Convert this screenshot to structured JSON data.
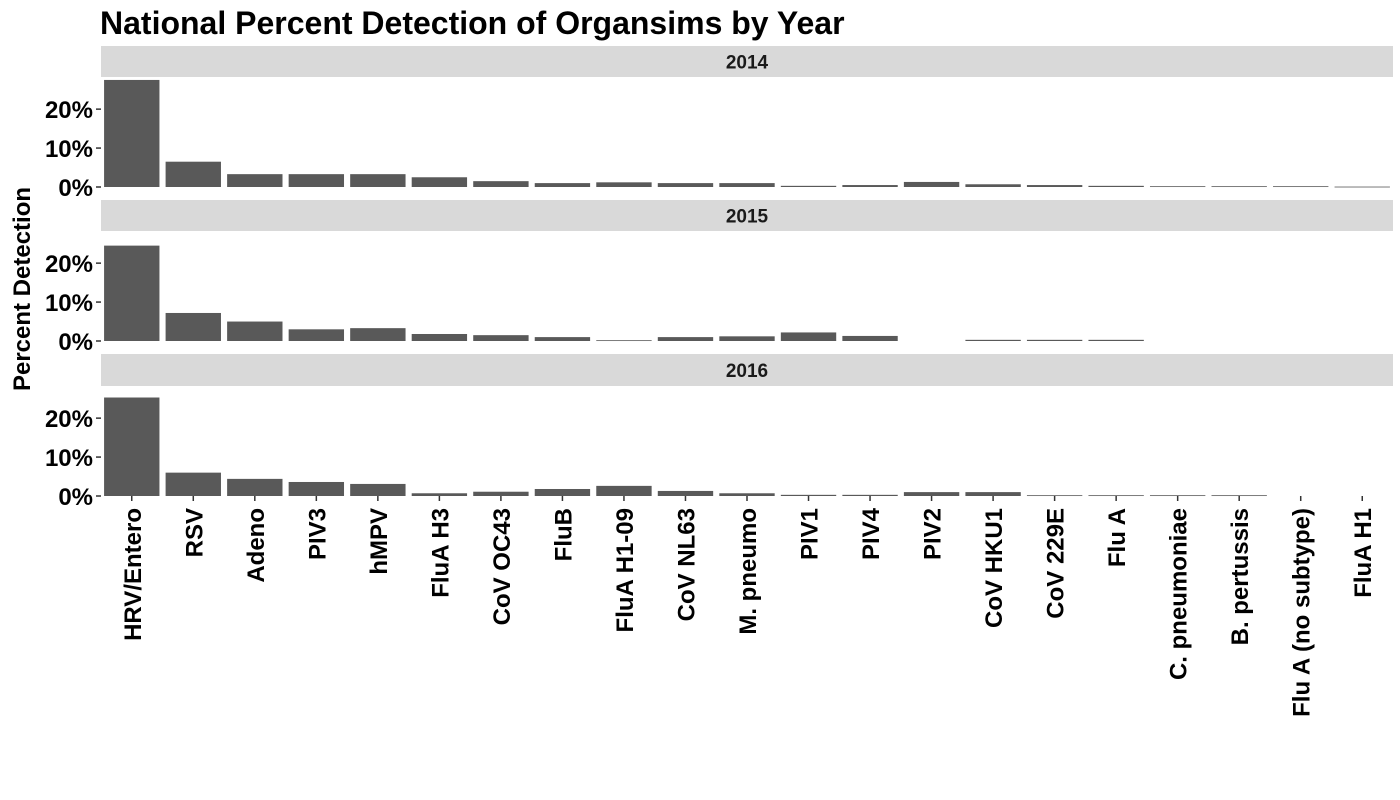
{
  "chart_data": {
    "type": "bar",
    "title": "National Percent Detection of Organsims by Year",
    "ylabel": "Percent Detection",
    "xlabel": "",
    "ylim": [
      0,
      28
    ],
    "y_ticks": [
      0,
      10,
      20
    ],
    "y_tick_labels": [
      "0%",
      "10%",
      "20%"
    ],
    "grid": false,
    "bar_color": "#595959",
    "strip_color": "#d9d9d9",
    "categories": [
      "HRV/Entero",
      "RSV",
      "Adeno",
      "PIV3",
      "hMPV",
      "FluA H3",
      "CoV OC43",
      "FluB",
      "FluA H1-09",
      "CoV NL63",
      "M. pneumo",
      "PIV1",
      "PIV4",
      "PIV2",
      "CoV HKU1",
      "CoV 229E",
      "Flu A",
      "C. pneumoniae",
      "B. pertussis",
      "Flu A (no subtype)",
      "FluA H1"
    ],
    "series": [
      {
        "name": "2014",
        "values": [
          27.5,
          6.5,
          3.3,
          3.3,
          3.3,
          2.5,
          1.5,
          1.0,
          1.2,
          1.0,
          1.0,
          0.3,
          0.5,
          1.3,
          0.7,
          0.5,
          0.3,
          0.2,
          0.2,
          0.2,
          0.1
        ]
      },
      {
        "name": "2015",
        "values": [
          24.5,
          7.2,
          5.0,
          3.0,
          3.3,
          1.8,
          1.5,
          1.0,
          0.2,
          1.0,
          1.2,
          2.2,
          1.3,
          null,
          0.3,
          0.3,
          0.3,
          null,
          null,
          null,
          null
        ]
      },
      {
        "name": "2016",
        "values": [
          25.3,
          6.0,
          4.4,
          3.6,
          3.1,
          0.7,
          1.1,
          1.8,
          2.6,
          1.3,
          0.7,
          0.3,
          0.3,
          1.0,
          1.0,
          0.2,
          0.2,
          0.2,
          0.2,
          null,
          null
        ]
      }
    ]
  }
}
